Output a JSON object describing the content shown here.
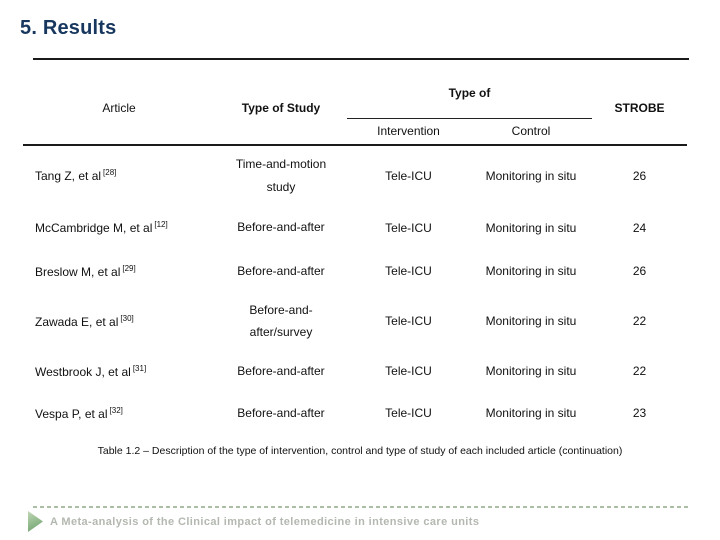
{
  "title": "5. Results",
  "table": {
    "headers": {
      "article": "Article",
      "type_of_study": "Type of Study",
      "type_of": "Type of",
      "intervention": "Intervention",
      "control": "Control",
      "strobe": "STROBE"
    },
    "rows": [
      {
        "article": "Tang Z, et al",
        "cite": "[28]",
        "study": "Time-and-motion\nstudy",
        "intervention": "Tele-ICU",
        "control": "Monitoring in situ",
        "strobe": "26"
      },
      {
        "article": "McCambridge M, et al",
        "cite": "[12]",
        "study": "Before-and-after",
        "intervention": "Tele-ICU",
        "control": "Monitoring in situ",
        "strobe": "24"
      },
      {
        "article": "Breslow M, et al",
        "cite": "[29]",
        "study": "Before-and-after",
        "intervention": "Tele-ICU",
        "control": "Monitoring in situ",
        "strobe": "26"
      },
      {
        "article": "Zawada E, et al",
        "cite": "[30]",
        "study": "Before-and-\nafter/survey",
        "intervention": "Tele-ICU",
        "control": "Monitoring in situ",
        "strobe": "22"
      },
      {
        "article": "Westbrook J, et al",
        "cite": "[31]",
        "study": "Before-and-after",
        "intervention": "Tele-ICU",
        "control": "Monitoring in situ",
        "strobe": "22"
      },
      {
        "article": "Vespa P, et al",
        "cite": "[32]",
        "study": "Before-and-after",
        "intervention": "Tele-ICU",
        "control": "Monitoring in situ",
        "strobe": "23"
      }
    ],
    "caption": "Table 1.2 – Description of the type of intervention, control and type of study of each included article (continuation)"
  },
  "footer": {
    "text": "A Meta-analysis of the Clinical impact of telemedicine in intensive care units",
    "icon": "play-triangle-icon"
  },
  "colors": {
    "title_navy": "#17375e",
    "table_text": "#111111",
    "footer_gray": "#b3b8b0",
    "accent_green": "#8fb88a",
    "dash_green": "#aabfa5"
  }
}
